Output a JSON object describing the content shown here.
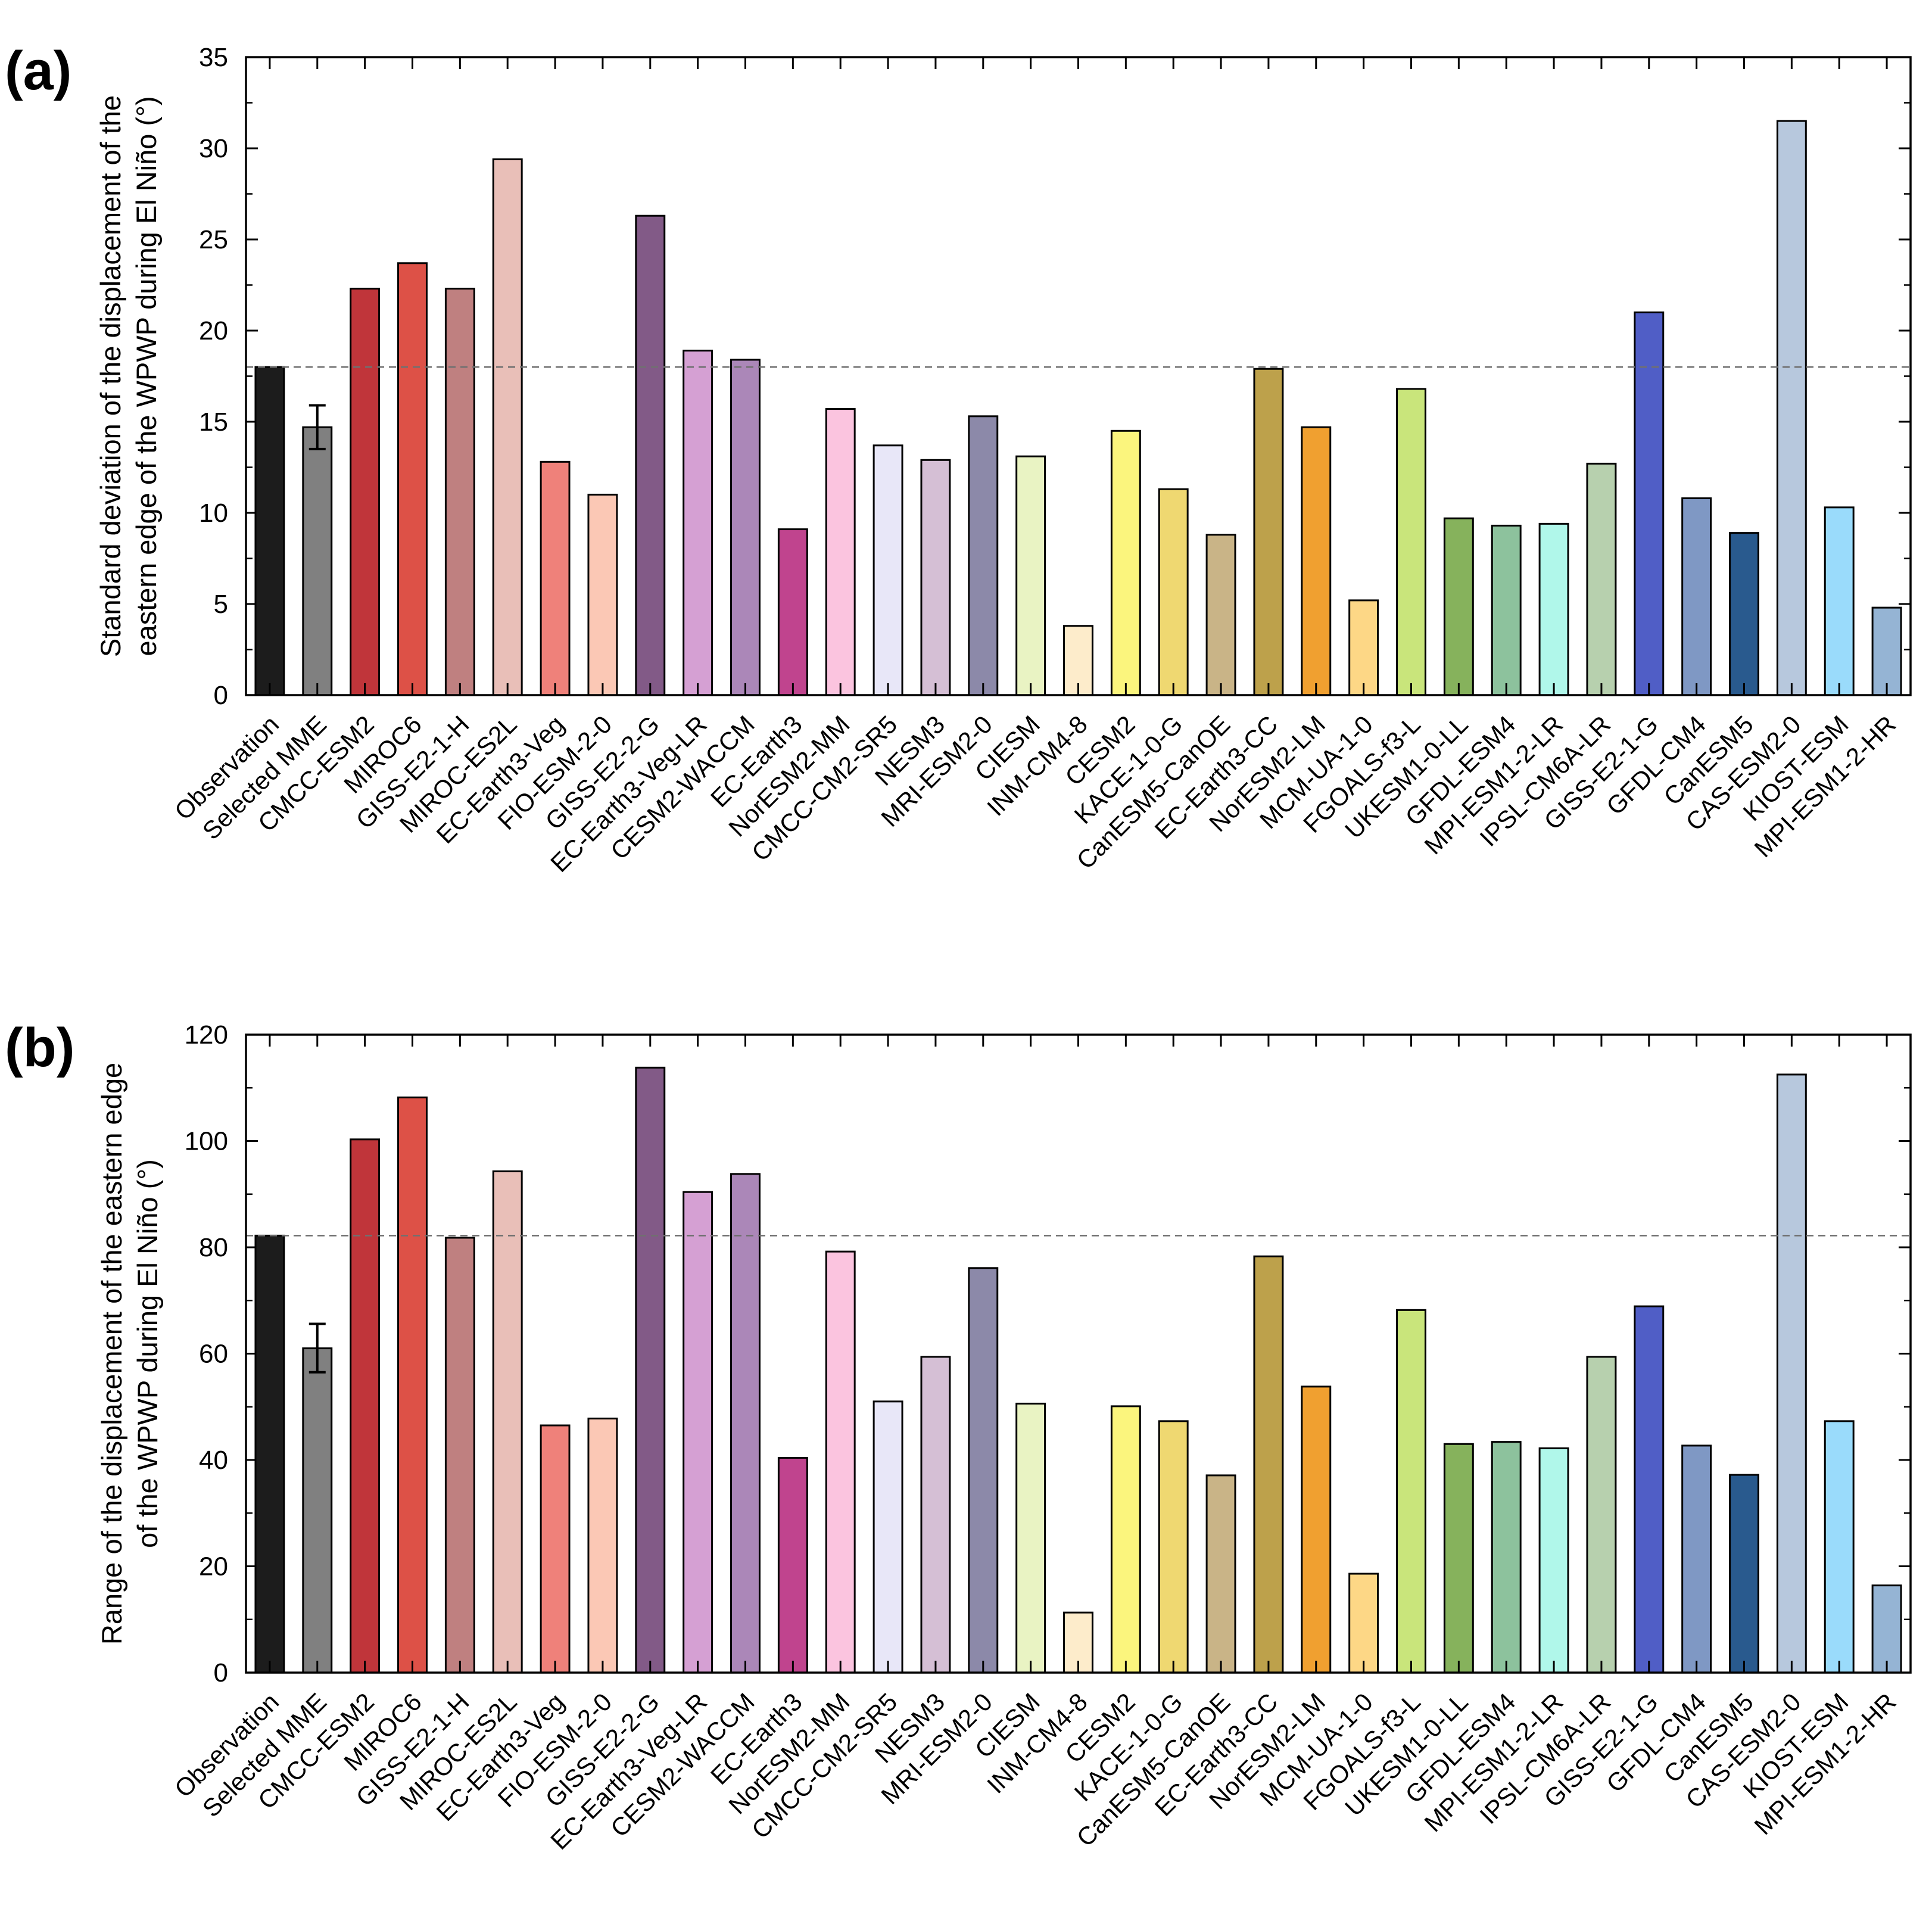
{
  "chart_data": [
    {
      "type": "bar",
      "panel_label": "(a)",
      "title": "",
      "xlabel": "",
      "ylabel_lines": [
        "Standard deviation of the displacement of the",
        "eastern edge of the WPWP during El Niño (°)"
      ],
      "ylim": [
        0,
        35
      ],
      "yticks": [
        "0",
        "5",
        "10",
        "15",
        "20",
        "25",
        "30",
        "35"
      ],
      "reference_line": 18.0,
      "reference_line_style": "dashed",
      "categories": [
        "Observation",
        "Selected MME",
        "CMCC-ESM2",
        "MIROC6",
        "GISS-E2-1-H",
        "MIROC-ES2L",
        "EC-Earth3-Veg",
        "FIO-ESM-2-0",
        "GISS-E2-2-G",
        "EC-Earth3-Veg-LR",
        "CESM2-WACCM",
        "EC-Earth3",
        "NorESM2-MM",
        "CMCC-CM2-SR5",
        "NESM3",
        "MRI-ESM2-0",
        "CIESM",
        "INM-CM4-8",
        "CESM2",
        "KACE-1-0-G",
        "CanESM5-CanOE",
        "EC-Earth3-CC",
        "NorESM2-LM",
        "MCM-UA-1-0",
        "FGOALS-f3-L",
        "UKESM1-0-LL",
        "GFDL-ESM4",
        "MPI-ESM1-2-LR",
        "IPSL-CM6A-LR",
        "GISS-E2-1-G",
        "GFDL-CM4",
        "CanESM5",
        "CAS-ESM2-0",
        "KIOST-ESM",
        "MPI-ESM1-2-HR"
      ],
      "values": [
        18.0,
        14.7,
        22.3,
        23.7,
        22.3,
        29.4,
        12.8,
        11.0,
        26.3,
        18.9,
        18.4,
        9.1,
        15.7,
        13.7,
        12.9,
        15.3,
        13.1,
        3.8,
        14.5,
        11.3,
        8.8,
        17.9,
        14.7,
        5.2,
        16.8,
        9.7,
        9.3,
        9.4,
        12.7,
        21.0,
        10.8,
        8.9,
        31.5,
        10.3,
        4.8
      ],
      "error_bar": {
        "category": "Selected MME",
        "low": 13.5,
        "high": 15.9
      }
    },
    {
      "type": "bar",
      "panel_label": "(b)",
      "title": "",
      "xlabel": "",
      "ylabel_lines": [
        "Range of the displacement of the eastern edge",
        "of the WPWP during El Niño (°)"
      ],
      "ylim": [
        0,
        120
      ],
      "yticks": [
        "0",
        "20",
        "40",
        "60",
        "80",
        "100",
        "120"
      ],
      "reference_line": 82.2,
      "reference_line_style": "dashed",
      "categories": [
        "Observation",
        "Selected MME",
        "CMCC-ESM2",
        "MIROC6",
        "GISS-E2-1-H",
        "MIROC-ES2L",
        "EC-Earth3-Veg",
        "FIO-ESM-2-0",
        "GISS-E2-2-G",
        "EC-Earth3-Veg-LR",
        "CESM2-WACCM",
        "EC-Earth3",
        "NorESM2-MM",
        "CMCC-CM2-SR5",
        "NESM3",
        "MRI-ESM2-0",
        "CIESM",
        "INM-CM4-8",
        "CESM2",
        "KACE-1-0-G",
        "CanESM5-CanOE",
        "EC-Earth3-CC",
        "NorESM2-LM",
        "MCM-UA-1-0",
        "FGOALS-f3-L",
        "UKESM1-0-LL",
        "GFDL-ESM4",
        "MPI-ESM1-2-LR",
        "IPSL-CM6A-LR",
        "GISS-E2-1-G",
        "GFDL-CM4",
        "CanESM5",
        "CAS-ESM2-0",
        "KIOST-ESM",
        "MPI-ESM1-2-HR"
      ],
      "values": [
        82.2,
        61.0,
        100.3,
        108.2,
        81.8,
        94.3,
        46.5,
        47.8,
        113.8,
        90.4,
        93.8,
        40.4,
        79.2,
        51.0,
        59.4,
        76.1,
        50.6,
        11.3,
        50.1,
        47.3,
        37.1,
        78.3,
        53.8,
        18.6,
        68.2,
        43.0,
        43.4,
        42.2,
        59.4,
        68.9,
        42.7,
        37.2,
        112.5,
        47.3,
        16.4
      ],
      "error_bar": {
        "category": "Selected MME",
        "low": 56.5,
        "high": 65.6
      }
    }
  ],
  "bar_colors": [
    "#1c1c1c",
    "#808080",
    "#c0353a",
    "#dd5147",
    "#bf8080",
    "#e9bfb8",
    "#ef817a",
    "#fbc8b5",
    "#825a87",
    "#d5a0d3",
    "#ab87b8",
    "#c0448e",
    "#fbc4df",
    "#e8e7f8",
    "#d5bfd5",
    "#8c89a9",
    "#e9f3c3",
    "#fdeccb",
    "#fbf57d",
    "#efd871",
    "#c9b487",
    "#bda14b",
    "#f0a030",
    "#fdd786",
    "#c9e57b",
    "#86b25c",
    "#8dc29d",
    "#b0f7ea",
    "#b7d0ae",
    "#505ec6",
    "#7f98c4",
    "#295a8e",
    "#b7c8dd",
    "#9adbfb",
    "#95b4d4"
  ],
  "reference_line_color": "#707070"
}
